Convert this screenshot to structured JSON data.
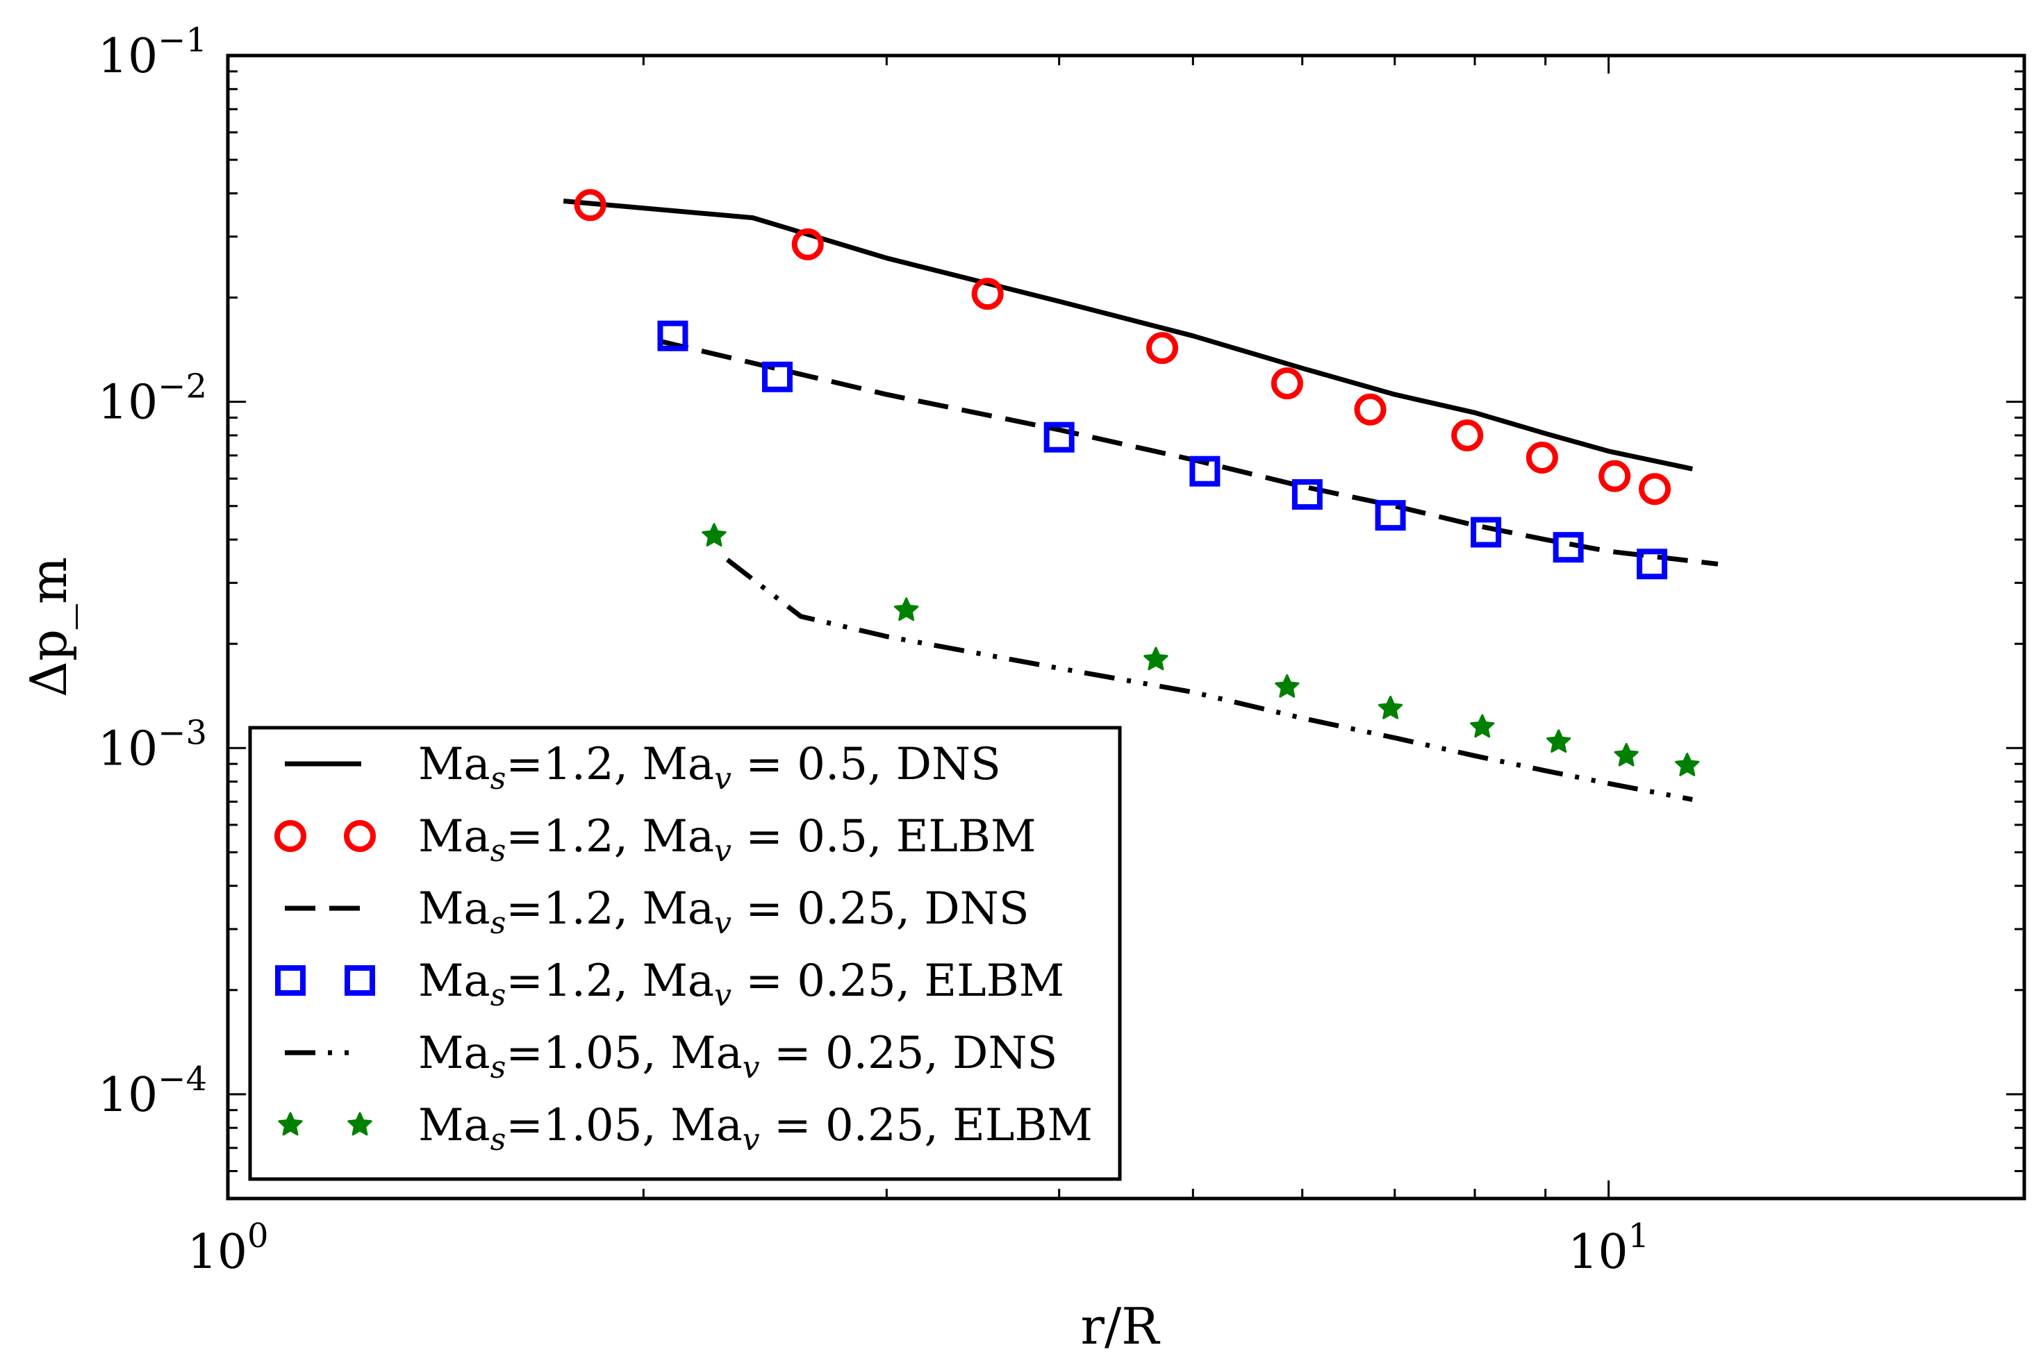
{
  "chart_data": {
    "type": "line",
    "title": "",
    "xlabel": "r/R",
    "ylabel": "Δp_m",
    "xscale": "log",
    "yscale": "log",
    "xlim": [
      1,
      20
    ],
    "ylim": [
      5e-05,
      0.1
    ],
    "grid": false,
    "legend_position": "lower-left",
    "x_ticks": [
      {
        "value": 1,
        "base": "10",
        "exp": "0"
      },
      {
        "value": 10,
        "base": "10",
        "exp": "1"
      }
    ],
    "y_ticks": [
      {
        "value": 0.0001,
        "base": "10",
        "exp": "−4"
      },
      {
        "value": 0.001,
        "base": "10",
        "exp": "−3"
      },
      {
        "value": 0.01,
        "base": "10",
        "exp": "−2"
      },
      {
        "value": 0.1,
        "base": "10",
        "exp": "−1"
      }
    ],
    "series": [
      {
        "name": "DNS Ma_s=1.2 Ma_v=0.5",
        "legend": {
          "pre": "Ma",
          "sub1": "s",
          "mid": "=1.2, Ma",
          "sub2": "v",
          "post": " = 0.5, DNS"
        },
        "style": "solid",
        "marker": "none",
        "color": "#000000",
        "x": [
          1.75,
          2.4,
          3.0,
          4.0,
          5.0,
          6.0,
          7.0,
          8.0,
          9.0,
          10.0,
          11.5
        ],
        "y": [
          0.038,
          0.034,
          0.026,
          0.0195,
          0.0155,
          0.0125,
          0.0105,
          0.0093,
          0.0081,
          0.0072,
          0.0064
        ]
      },
      {
        "name": "ELBM Ma_s=1.2 Ma_v=0.5",
        "legend": {
          "pre": "Ma",
          "sub1": "s",
          "mid": "=1.2, Ma",
          "sub2": "v",
          "post": " = 0.5, ELBM"
        },
        "style": "none",
        "marker": "circle",
        "color": "#ff0000",
        "x": [
          1.83,
          2.63,
          3.55,
          4.75,
          5.85,
          6.72,
          7.9,
          8.95,
          10.1,
          10.8
        ],
        "y": [
          0.037,
          0.0285,
          0.0205,
          0.0143,
          0.0113,
          0.0095,
          0.008,
          0.0069,
          0.0061,
          0.0056
        ]
      },
      {
        "name": "DNS Ma_s=1.2 Ma_v=0.25",
        "legend": {
          "pre": "Ma",
          "sub1": "s",
          "mid": "=1.2, Ma",
          "sub2": "v",
          "post": " = 0.25, DNS"
        },
        "style": "dashed",
        "marker": "none",
        "color": "#000000",
        "x": [
          2.05,
          3.0,
          4.0,
          5.0,
          6.0,
          7.0,
          8.0,
          9.0,
          10.0,
          12.0
        ],
        "y": [
          0.015,
          0.0105,
          0.0083,
          0.0068,
          0.0057,
          0.005,
          0.0044,
          0.004,
          0.0037,
          0.0034
        ]
      },
      {
        "name": "ELBM Ma_s=1.2 Ma_v=0.25",
        "legend": {
          "pre": "Ma",
          "sub1": "s",
          "mid": "=1.2, Ma",
          "sub2": "v",
          "post": " = 0.25, ELBM"
        },
        "style": "none",
        "marker": "square",
        "color": "#0000ff",
        "x": [
          2.1,
          2.5,
          4.0,
          5.1,
          6.05,
          6.95,
          8.15,
          9.35,
          10.75
        ],
        "y": [
          0.0155,
          0.0118,
          0.0079,
          0.0063,
          0.0054,
          0.0047,
          0.0042,
          0.0038,
          0.0034
        ]
      },
      {
        "name": "DNS Ma_s=1.05 Ma_v=0.25",
        "legend": {
          "pre": "Ma",
          "sub1": "s",
          "mid": "=1.05, Ma",
          "sub2": "v",
          "post": " = 0.25, DNS"
        },
        "style": "dashdotdot",
        "marker": "none",
        "color": "#000000",
        "x": [
          2.3,
          2.6,
          3.0,
          4.0,
          5.0,
          6.0,
          7.0,
          8.0,
          9.0,
          10.0,
          11.5
        ],
        "y": [
          0.0035,
          0.0024,
          0.0021,
          0.0017,
          0.00145,
          0.00122,
          0.00107,
          0.00095,
          0.00086,
          0.00079,
          0.00071
        ]
      },
      {
        "name": "ELBM Ma_s=1.05 Ma_v=0.25",
        "legend": {
          "pre": "Ma",
          "sub1": "s",
          "mid": "=1.05, Ma",
          "sub2": "v",
          "post": " = 0.25, ELBM"
        },
        "style": "none",
        "marker": "star",
        "color": "#008000",
        "x": [
          2.25,
          3.1,
          4.7,
          5.85,
          6.95,
          8.1,
          9.2,
          10.3,
          11.4
        ],
        "y": [
          0.0041,
          0.0025,
          0.0018,
          0.0015,
          0.0013,
          0.00115,
          0.00104,
          0.00095,
          0.00089
        ]
      }
    ]
  }
}
